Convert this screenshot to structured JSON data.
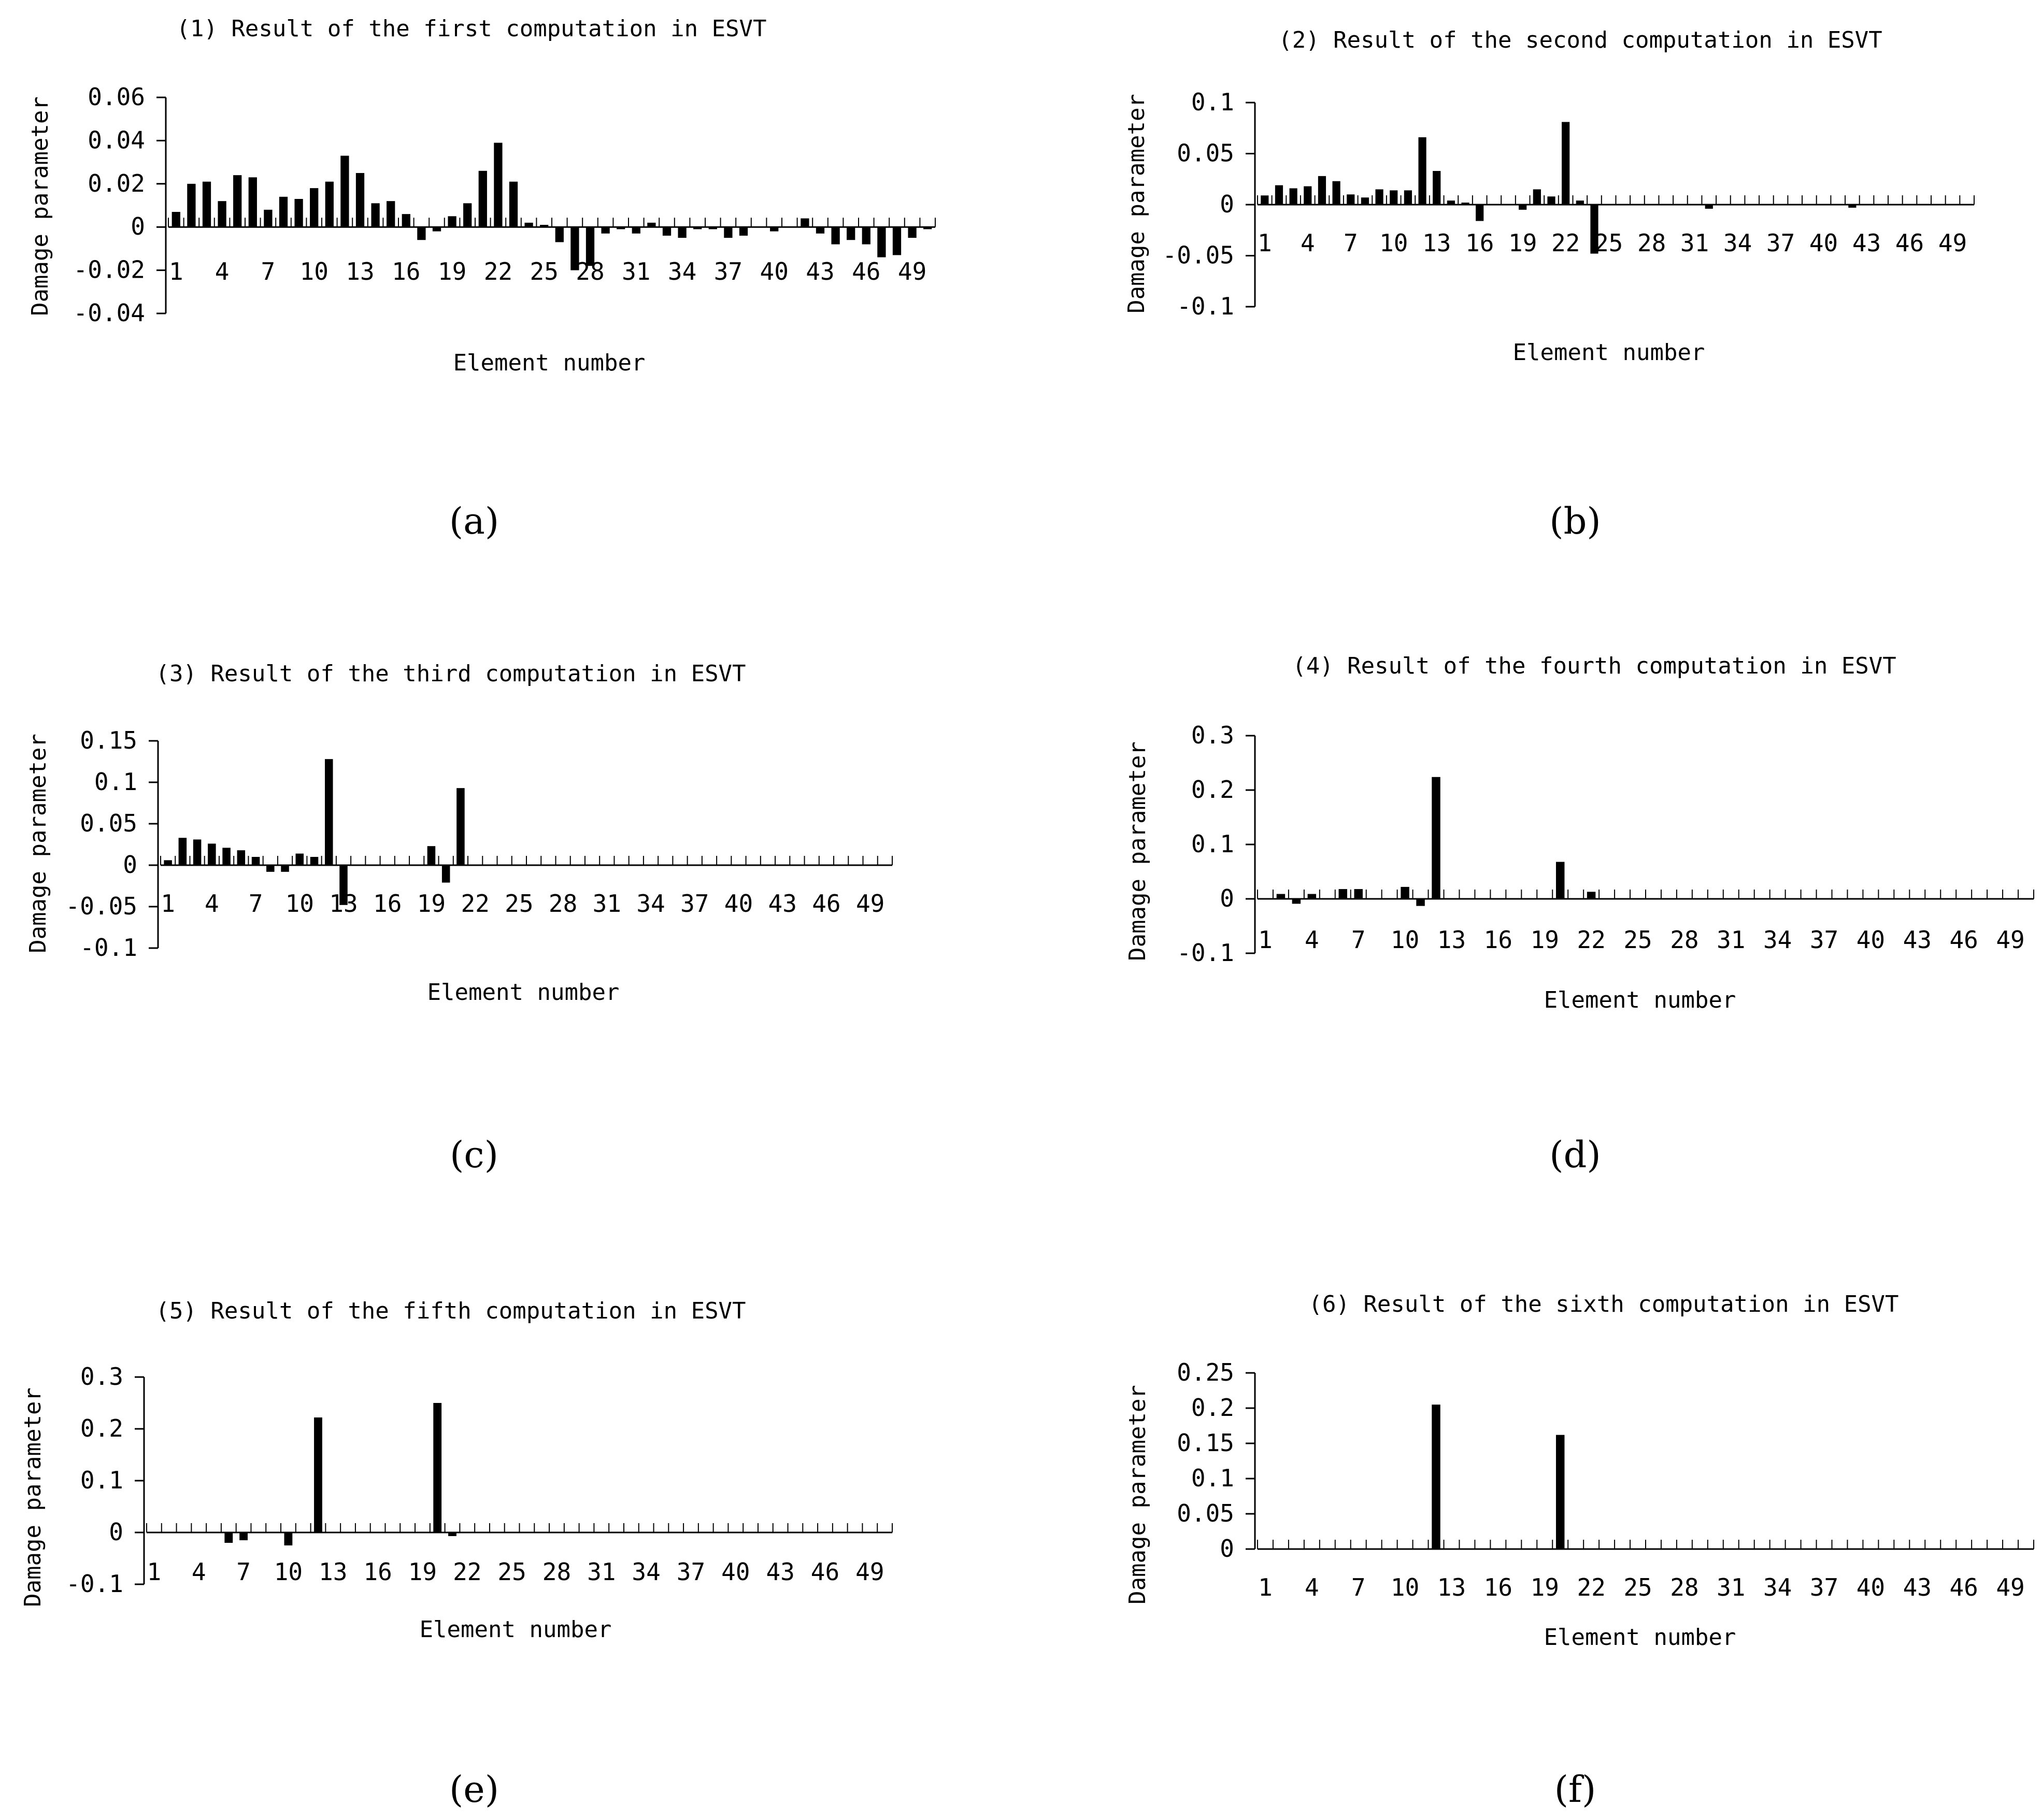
{
  "charts": [
    {
      "type": "bar",
      "title": "(1) Result of the first computation in ESVT",
      "ylabel": "Damage parameter",
      "xlabel": "Element number",
      "ylim": [
        -0.04,
        0.06
      ],
      "yticks": [
        0.06,
        0.04,
        0.02,
        0,
        -0.02,
        -0.04
      ],
      "yticklabels": [
        "0.06",
        "0.04",
        "0.02",
        "0",
        "-0.02",
        "-0.04"
      ],
      "xticklabels": [
        "1",
        "4",
        "7",
        "10",
        "13",
        "16",
        "19",
        "22",
        "25",
        "28",
        "31",
        "34",
        "37",
        "40",
        "43",
        "46",
        "49"
      ],
      "caption": "(a)",
      "values": [
        0.007,
        0.02,
        0.021,
        0.012,
        0.024,
        0.023,
        0.008,
        0.014,
        0.013,
        0.018,
        0.021,
        0.033,
        0.025,
        0.011,
        0.012,
        0.006,
        -0.006,
        -0.002,
        0.005,
        0.011,
        0.026,
        0.039,
        0.021,
        0.002,
        0.001,
        -0.007,
        -0.02,
        -0.018,
        -0.003,
        -0.001,
        -0.003,
        0.002,
        -0.004,
        -0.005,
        -0.001,
        -0.001,
        -0.005,
        -0.004,
        0,
        -0.002,
        0,
        0.004,
        -0.003,
        -0.008,
        -0.006,
        -0.008,
        -0.014,
        -0.013,
        -0.005,
        -0.001
      ]
    },
    {
      "type": "bar",
      "title": "(2) Result of the second computation in ESVT",
      "ylabel": "Damage parameter",
      "xlabel": "Element number",
      "ylim": [
        -0.1,
        0.1
      ],
      "yticks": [
        0.1,
        0.05,
        0,
        -0.05,
        -0.1
      ],
      "yticklabels": [
        "0.1",
        "0.05",
        "0",
        "-0.05",
        "-0.1"
      ],
      "xticklabels": [
        "1",
        "4",
        "7",
        "10",
        "13",
        "16",
        "19",
        "22",
        "25",
        "28",
        "31",
        "34",
        "37",
        "40",
        "43",
        "46",
        "49"
      ],
      "caption": "(b)",
      "values": [
        0.009,
        0.019,
        0.016,
        0.018,
        0.028,
        0.023,
        0.01,
        0.007,
        0.015,
        0.014,
        0.014,
        0.066,
        0.033,
        0.004,
        0.002,
        -0.016,
        0,
        0,
        -0.005,
        0.015,
        0.008,
        0.081,
        0.004,
        -0.048,
        0,
        0,
        0,
        0,
        0,
        0,
        0,
        -0.004,
        0,
        0,
        0,
        0,
        0,
        0,
        0,
        0,
        0,
        -0.003,
        0,
        0,
        0,
        0,
        0,
        0,
        0,
        0
      ]
    },
    {
      "type": "bar",
      "title": "(3) Result of the third computation in ESVT",
      "ylabel": "Damage parameter",
      "xlabel": "Element number",
      "ylim": [
        -0.1,
        0.15
      ],
      "yticks": [
        0.15,
        0.1,
        0.05,
        0,
        -0.05,
        -0.1
      ],
      "yticklabels": [
        "0.15",
        "0.1",
        "0.05",
        "0",
        "-0.05",
        "-0.1"
      ],
      "xticklabels": [
        "1",
        "4",
        "7",
        "10",
        "13",
        "16",
        "19",
        "22",
        "25",
        "28",
        "31",
        "34",
        "37",
        "40",
        "43",
        "46",
        "49"
      ],
      "caption": "(c)",
      "values": [
        0.006,
        0.033,
        0.031,
        0.026,
        0.021,
        0.018,
        0.01,
        -0.008,
        -0.008,
        0.014,
        0.01,
        0.128,
        -0.048,
        0,
        0,
        0,
        0,
        0,
        0.023,
        -0.021,
        0.093,
        0,
        0,
        0,
        0,
        0,
        0,
        0,
        0,
        0,
        0,
        0,
        0,
        0,
        0,
        0,
        0,
        0,
        0,
        0,
        0,
        0,
        0,
        0,
        0,
        0,
        0,
        0,
        0,
        0
      ]
    },
    {
      "type": "bar",
      "title": "(4) Result of the fourth computation in ESVT",
      "ylabel": "Damage parameter",
      "xlabel": "Element number",
      "ylim": [
        -0.1,
        0.3
      ],
      "yticks": [
        0.3,
        0.2,
        0.1,
        0,
        -0.1
      ],
      "yticklabels": [
        "0.3",
        "0.2",
        "0.1",
        "0",
        "-0.1"
      ],
      "xticklabels": [
        "1",
        "4",
        "7",
        "10",
        "13",
        "16",
        "19",
        "22",
        "25",
        "28",
        "31",
        "34",
        "37",
        "40",
        "43",
        "46",
        "49"
      ],
      "caption": "(d)",
      "values": [
        0,
        0.009,
        -0.009,
        0.009,
        0,
        0.018,
        0.018,
        0,
        0,
        0.022,
        -0.013,
        0.224,
        0,
        0,
        0,
        0,
        0,
        0,
        0,
        0.068,
        0,
        0.013,
        0,
        0,
        0,
        0,
        0,
        0,
        0,
        0,
        0,
        0,
        0,
        0,
        0,
        0,
        0,
        0,
        0,
        0,
        0,
        0,
        0,
        0,
        0,
        0,
        0,
        0,
        0,
        0
      ]
    },
    {
      "type": "bar",
      "title": "(5) Result of the fifth computation in ESVT",
      "ylabel": "Damage parameter",
      "xlabel": "Element number",
      "ylim": [
        -0.1,
        0.3
      ],
      "yticks": [
        0.3,
        0.2,
        0.1,
        0,
        -0.1
      ],
      "yticklabels": [
        "0.3",
        "0.2",
        "0.1",
        "0",
        "-0.1"
      ],
      "xticklabels": [
        "1",
        "4",
        "7",
        "10",
        "13",
        "16",
        "19",
        "22",
        "25",
        "28",
        "31",
        "34",
        "37",
        "40",
        "43",
        "46",
        "49"
      ],
      "caption": "(e)",
      "values": [
        0,
        0,
        0,
        0,
        0,
        -0.02,
        -0.015,
        0,
        0,
        -0.025,
        0,
        0.222,
        0,
        0,
        0,
        0,
        0,
        0,
        0,
        0.25,
        -0.007,
        0,
        0,
        0,
        0,
        0,
        0,
        0,
        0,
        0,
        0,
        0,
        0,
        0,
        0,
        0,
        0,
        0,
        0,
        0,
        0,
        0,
        0,
        0,
        0,
        0,
        0,
        0,
        0,
        0
      ]
    },
    {
      "type": "bar",
      "title": "(6) Result of the sixth computation in ESVT",
      "ylabel": "Damage parameter",
      "xlabel": "Element number",
      "ylim": [
        0,
        0.25
      ],
      "yticks": [
        0.25,
        0.2,
        0.15,
        0.1,
        0.05,
        0
      ],
      "yticklabels": [
        "0.25",
        "0.2",
        "0.15",
        "0.1",
        "0.05",
        "0"
      ],
      "xticklabels": [
        "1",
        "4",
        "7",
        "10",
        "13",
        "16",
        "19",
        "22",
        "25",
        "28",
        "31",
        "34",
        "37",
        "40",
        "43",
        "46",
        "49"
      ],
      "caption": "(f)",
      "values": [
        0,
        0,
        0,
        0,
        0,
        0,
        0,
        0,
        0,
        0,
        0,
        0.205,
        0,
        0,
        0,
        0,
        0,
        0,
        0,
        0.162,
        0,
        0,
        0,
        0,
        0,
        0,
        0,
        0,
        0,
        0,
        0,
        0,
        0,
        0,
        0,
        0,
        0,
        0,
        0,
        0,
        0,
        0,
        0,
        0,
        0,
        0,
        0,
        0,
        0,
        0
      ]
    }
  ],
  "chart_data": [
    {
      "type": "bar",
      "title": "(1) Result of the first computation in ESVT",
      "xlabel": "Element number",
      "ylabel": "Damage parameter",
      "ylim": [
        -0.04,
        0.06
      ],
      "x": "elements 1-50",
      "ref": "charts.0.values"
    },
    {
      "type": "bar",
      "title": "(2) Result of the second computation in ESVT",
      "xlabel": "Element number",
      "ylabel": "Damage parameter",
      "ylim": [
        -0.1,
        0.1
      ],
      "x": "elements 1-50",
      "ref": "charts.1.values"
    },
    {
      "type": "bar",
      "title": "(3) Result of the third computation in ESVT",
      "xlabel": "Element number",
      "ylabel": "Damage parameter",
      "ylim": [
        -0.1,
        0.15
      ],
      "x": "elements 1-50",
      "ref": "charts.2.values"
    },
    {
      "type": "bar",
      "title": "(4) Result of the fourth computation in ESVT",
      "xlabel": "Element number",
      "ylabel": "Damage parameter",
      "ylim": [
        -0.1,
        0.3
      ],
      "x": "elements 1-50",
      "ref": "charts.3.values"
    },
    {
      "type": "bar",
      "title": "(5) Result of the fifth computation in ESVT",
      "xlabel": "Element number",
      "ylabel": "Damage parameter",
      "ylim": [
        -0.1,
        0.3
      ],
      "x": "elements 1-50",
      "ref": "charts.4.values"
    },
    {
      "type": "bar",
      "title": "(6) Result of the sixth computation in ESVT",
      "xlabel": "Element number",
      "ylabel": "Damage parameter",
      "ylim": [
        0,
        0.25
      ],
      "x": "elements 1-50",
      "ref": "charts.5.values"
    }
  ]
}
